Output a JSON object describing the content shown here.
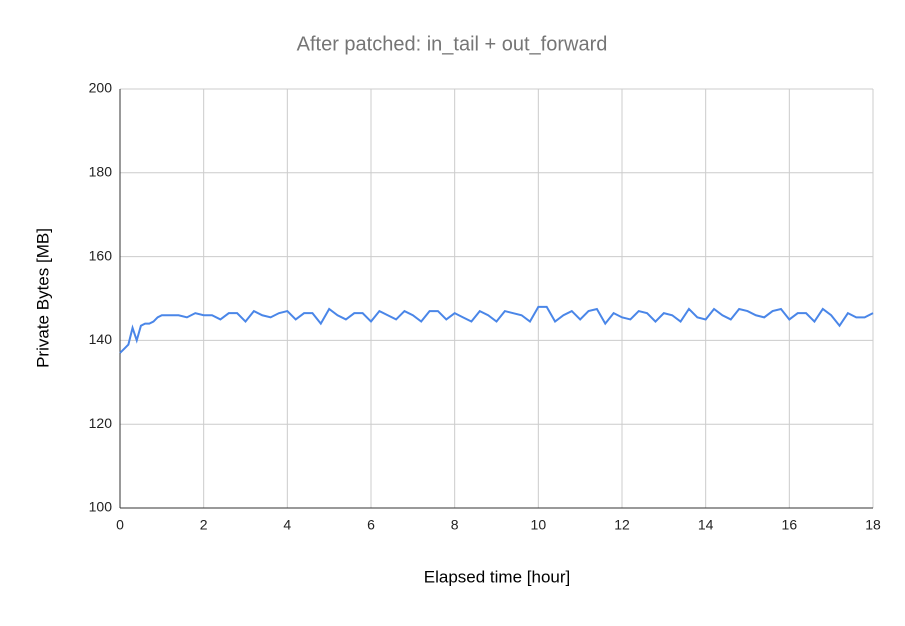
{
  "chart_data": {
    "type": "line",
    "title": "After patched: in_tail + out_forward",
    "x_label": "Elapsed time [hour]",
    "y_label": "Private Bytes [MB]",
    "x": [
      0,
      0.1,
      0.2,
      0.3,
      0.4,
      0.5,
      0.6,
      0.7,
      0.8,
      0.9,
      1.0,
      1.2,
      1.4,
      1.6,
      1.8,
      2.0,
      2.2,
      2.4,
      2.6,
      2.8,
      3.0,
      3.2,
      3.4,
      3.6,
      3.8,
      4.0,
      4.2,
      4.4,
      4.6,
      4.8,
      5.0,
      5.2,
      5.4,
      5.6,
      5.8,
      6.0,
      6.2,
      6.4,
      6.6,
      6.8,
      7.0,
      7.2,
      7.4,
      7.6,
      7.8,
      8.0,
      8.2,
      8.4,
      8.6,
      8.8,
      9.0,
      9.2,
      9.4,
      9.6,
      9.8,
      10.0,
      10.2,
      10.4,
      10.6,
      10.8,
      11.0,
      11.2,
      11.4,
      11.6,
      11.8,
      12.0,
      12.2,
      12.4,
      12.6,
      12.8,
      13.0,
      13.2,
      13.4,
      13.6,
      13.8,
      14.0,
      14.2,
      14.4,
      14.6,
      14.8,
      15.0,
      15.2,
      15.4,
      15.6,
      15.8,
      16.0,
      16.2,
      16.4,
      16.6,
      16.8,
      17.0,
      17.2,
      17.4,
      17.6,
      17.8,
      18.0
    ],
    "series": [
      {
        "name": "Private Bytes",
        "color": "#4a86e8",
        "values": [
          137,
          138,
          139,
          143,
          140,
          143.5,
          144,
          144,
          144.5,
          145.5,
          146,
          146,
          146,
          145.5,
          146.5,
          146,
          146,
          145,
          146.5,
          146.5,
          144.5,
          147,
          146,
          145.5,
          146.5,
          147,
          145,
          146.5,
          146.5,
          144,
          147.5,
          146,
          145,
          146.5,
          146.5,
          144.5,
          147,
          146,
          145,
          147,
          146,
          144.5,
          147,
          147,
          145,
          146.5,
          145.5,
          144.5,
          147,
          146,
          144.5,
          147,
          146.5,
          146,
          144.5,
          148,
          148,
          144.5,
          146,
          147,
          145,
          147,
          147.5,
          144,
          146.5,
          145.5,
          145,
          147,
          146.5,
          144.5,
          146.5,
          146,
          144.5,
          147.5,
          145.5,
          145,
          147.5,
          146,
          145,
          147.5,
          147,
          146,
          145.5,
          147,
          147.5,
          145,
          146.5,
          146.5,
          144.5,
          147.5,
          146,
          143.5,
          146.5,
          145.5,
          145.5,
          146.5
        ]
      }
    ],
    "xlim": [
      0,
      18
    ],
    "xticks": [
      0,
      2,
      4,
      6,
      8,
      10,
      12,
      14,
      16,
      18
    ],
    "ylim": [
      100,
      200
    ],
    "yticks": [
      100,
      120,
      140,
      160,
      180,
      200
    ],
    "grid": true
  }
}
